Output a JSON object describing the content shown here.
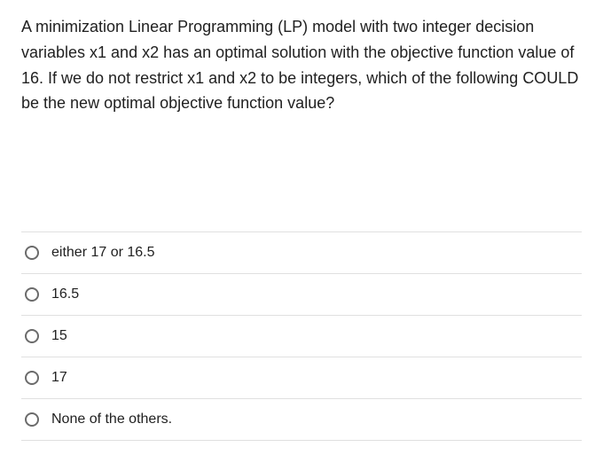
{
  "question": {
    "text": "A minimization Linear Programming (LP) model with two integer decision variables x1 and x2 has an optimal solution with the objective function value of 16. If we do not restrict x1 and x2 to be integers, which of the following COULD be the new optimal objective function value?"
  },
  "options": [
    {
      "label": "either 17 or 16.5"
    },
    {
      "label": "16.5"
    },
    {
      "label": "15"
    },
    {
      "label": "17"
    },
    {
      "label": "None of the others."
    }
  ],
  "styles": {
    "text_color": "#212121",
    "border_color": "#e0e0e0",
    "radio_border_color": "#6b6b6b",
    "background_color": "#ffffff",
    "question_fontsize": 18,
    "option_fontsize": 16
  }
}
